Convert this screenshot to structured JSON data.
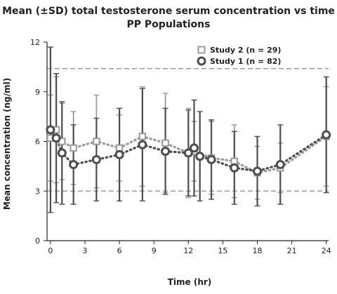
{
  "chart_data": {
    "type": "line",
    "title": "Mean (±SD) total testosterone serum concentration vs time",
    "subtitle": "PP Populations",
    "xlabel": "Time (hr)",
    "ylabel": "Mean concentration (ng/ml)",
    "xlim": [
      -0.3,
      24.2
    ],
    "ylim": [
      0,
      12
    ],
    "xticks": [
      0,
      3,
      6,
      9,
      12,
      15,
      18,
      21,
      24
    ],
    "yticks": [
      0,
      3,
      6,
      9,
      12
    ],
    "grid": false,
    "legend_position": "top-right",
    "reference_lines": [
      {
        "y": 10.4,
        "style": "dashed",
        "color": "#8a8a8a"
      },
      {
        "y": 3.0,
        "style": "dashed",
        "color": "#8a8a8a"
      }
    ],
    "series": [
      {
        "name": "Study 2 (n = 29)",
        "marker": "square",
        "color": "#9b9b9b",
        "points": [
          {
            "x": 0,
            "y": 6.2,
            "sd": 2.6
          },
          {
            "x": 0.5,
            "y": 6.7,
            "sd": 3.2
          },
          {
            "x": 1,
            "y": 6.0,
            "sd": 2.3
          },
          {
            "x": 2,
            "y": 5.6,
            "sd": 2.2
          },
          {
            "x": 4,
            "y": 6.0,
            "sd": 2.8
          },
          {
            "x": 6,
            "y": 5.6,
            "sd": 2.0
          },
          {
            "x": 8,
            "y": 6.3,
            "sd": 3.0
          },
          {
            "x": 10,
            "y": 5.9,
            "sd": 3.0
          },
          {
            "x": 12,
            "y": 5.3,
            "sd": 2.7
          },
          {
            "x": 12.5,
            "y": 5.4,
            "sd": 1.8
          },
          {
            "x": 14,
            "y": 5.0,
            "sd": 2.2
          },
          {
            "x": 16,
            "y": 4.8,
            "sd": 2.2
          },
          {
            "x": 18,
            "y": 4.1,
            "sd": 1.6
          },
          {
            "x": 20,
            "y": 4.4,
            "sd": 1.5
          },
          {
            "x": 24,
            "y": 6.3,
            "sd": 3.0
          }
        ]
      },
      {
        "name": "Study 1 (n = 82)",
        "marker": "circle",
        "color": "#4d4d4d",
        "points": [
          {
            "x": 0,
            "y": 6.7,
            "sd": 5.0
          },
          {
            "x": 0.5,
            "y": 6.2,
            "sd": 3.9
          },
          {
            "x": 1,
            "y": 5.3,
            "sd": 3.1
          },
          {
            "x": 2,
            "y": 4.6,
            "sd": 2.4
          },
          {
            "x": 4,
            "y": 4.9,
            "sd": 2.5
          },
          {
            "x": 6,
            "y": 5.2,
            "sd": 2.8
          },
          {
            "x": 8,
            "y": 5.8,
            "sd": 3.4
          },
          {
            "x": 10,
            "y": 5.4,
            "sd": 2.6
          },
          {
            "x": 12,
            "y": 5.3,
            "sd": 2.6
          },
          {
            "x": 12.5,
            "y": 5.6,
            "sd": 2.9
          },
          {
            "x": 13,
            "y": 5.1,
            "sd": 2.7
          },
          {
            "x": 14,
            "y": 4.9,
            "sd": 2.4
          },
          {
            "x": 16,
            "y": 4.4,
            "sd": 2.2
          },
          {
            "x": 18,
            "y": 4.2,
            "sd": 2.1
          },
          {
            "x": 20,
            "y": 4.6,
            "sd": 2.4
          },
          {
            "x": 24,
            "y": 6.4,
            "sd": 3.5
          }
        ]
      }
    ]
  }
}
